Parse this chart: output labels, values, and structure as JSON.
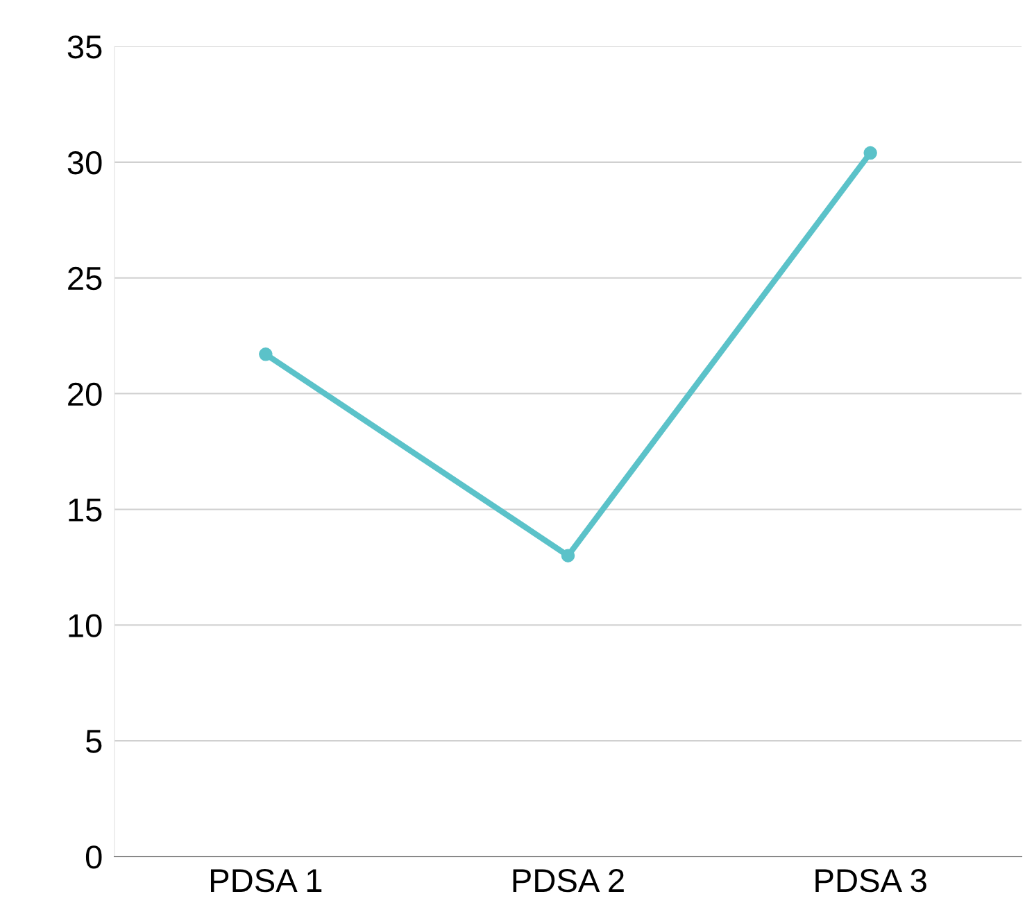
{
  "chart_data": {
    "type": "line",
    "categories": [
      "PDSA 1",
      "PDSA 2",
      "PDSA 3"
    ],
    "series": [
      {
        "color": "#5bc2c9",
        "values": [
          21.7,
          13.0,
          30.4
        ]
      }
    ],
    "ylim": [
      0,
      35
    ],
    "yticks": [
      0,
      5,
      10,
      15,
      20,
      25,
      30,
      35
    ],
    "grid": "y",
    "marker": "circle",
    "line_style": "solid",
    "legend": false
  }
}
